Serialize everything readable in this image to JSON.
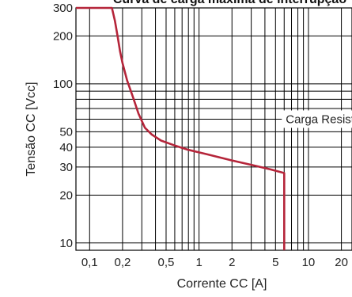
{
  "chart_data": {
    "type": "line",
    "title": "Curva de carga máxima de interrupção",
    "xlabel": "Corrente CC [A]",
    "ylabel": "Tensão CC [Vcc]",
    "x_scale": "log",
    "y_scale": "log",
    "xlim": [
      0.075,
      25
    ],
    "ylim": [
      9,
      300
    ],
    "x_ticks": [
      {
        "value": 0.1,
        "label": "0,1"
      },
      {
        "value": 0.2,
        "label": "0,2"
      },
      {
        "value": 0.5,
        "label": "0,5"
      },
      {
        "value": 1,
        "label": "1"
      },
      {
        "value": 2,
        "label": "2"
      },
      {
        "value": 5,
        "label": "5"
      },
      {
        "value": 10,
        "label": "10"
      },
      {
        "value": 20,
        "label": "20"
      }
    ],
    "y_ticks": [
      {
        "value": 10,
        "label": "10"
      },
      {
        "value": 20,
        "label": "20"
      },
      {
        "value": 30,
        "label": "30"
      },
      {
        "value": 40,
        "label": "40"
      },
      {
        "value": 50,
        "label": "50"
      },
      {
        "value": 100,
        "label": "100"
      },
      {
        "value": 200,
        "label": "200"
      },
      {
        "value": 300,
        "label": "300"
      }
    ],
    "x_grid": [
      0.1,
      0.2,
      0.3,
      0.4,
      0.5,
      0.6,
      0.7,
      0.8,
      0.9,
      1,
      2,
      3,
      4,
      5,
      6,
      7,
      8,
      9,
      10,
      20
    ],
    "y_grid": [
      10,
      20,
      30,
      40,
      50,
      60,
      70,
      80,
      90,
      100,
      200,
      300
    ],
    "grid": true,
    "series": [
      {
        "name": "Carga Resistiva",
        "color": "#b5253a",
        "points": [
          [
            0.075,
            300
          ],
          [
            0.16,
            300
          ],
          [
            0.17,
            250
          ],
          [
            0.18,
            200
          ],
          [
            0.19,
            160
          ],
          [
            0.2,
            135
          ],
          [
            0.22,
            105
          ],
          [
            0.25,
            82
          ],
          [
            0.28,
            65
          ],
          [
            0.32,
            53
          ],
          [
            0.37,
            48
          ],
          [
            0.45,
            44
          ],
          [
            0.6,
            41
          ],
          [
            0.8,
            38.5
          ],
          [
            1.2,
            36
          ],
          [
            2,
            33
          ],
          [
            3,
            31
          ],
          [
            4.5,
            29
          ],
          [
            6,
            27.5
          ],
          [
            6,
            9
          ]
        ]
      }
    ],
    "annotation": {
      "text": "Carga Resistiva",
      "x": 6,
      "y": 60
    }
  }
}
